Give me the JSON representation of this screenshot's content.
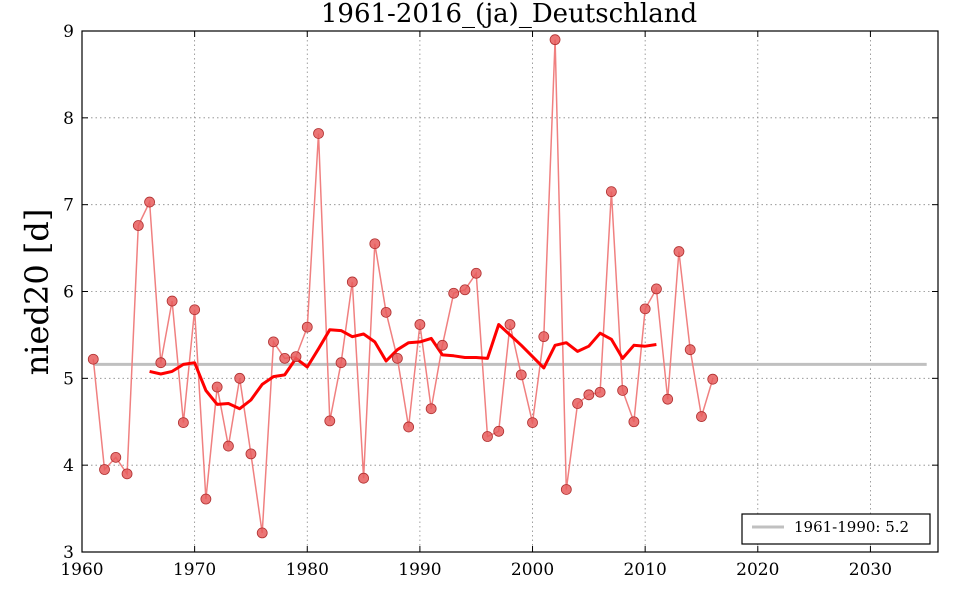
{
  "chart_data": {
    "type": "line",
    "title": "1961-2016_(ja)_Deutschland",
    "xlabel": "",
    "ylabel": "nied20 [d]",
    "xlim": [
      1960,
      2036
    ],
    "ylim": [
      3,
      9
    ],
    "xticks": [
      "1960",
      "1970",
      "1980",
      "1990",
      "2000",
      "2010",
      "2020",
      "2030"
    ],
    "yticks": [
      "3",
      "4",
      "5",
      "6",
      "7",
      "8",
      "9"
    ],
    "grid": true,
    "legend_position": "bottom-right",
    "colors": {
      "annual": "#f08080",
      "marker_fill": "#e85d5d",
      "moving_average": "#ff0000",
      "reference": "#c0c0c0"
    },
    "series": [
      {
        "x": [
          1961,
          1962,
          1963,
          1964,
          1965,
          1966,
          1967,
          1968,
          1969,
          1970,
          1971,
          1972,
          1973,
          1974,
          1975,
          1976,
          1977,
          1978,
          1979,
          1980,
          1981,
          1982,
          1983,
          1984,
          1985,
          1986,
          1987,
          1988,
          1989,
          1990,
          1991,
          1992,
          1993,
          1994,
          1995,
          1996,
          1997,
          1998,
          1999,
          2000,
          2001,
          2002,
          2003,
          2004,
          2005,
          2006,
          2007,
          2008,
          2009,
          2010,
          2011,
          2012,
          2013,
          2014,
          2015,
          2016
        ],
        "values": [
          5.22,
          3.95,
          4.09,
          3.9,
          6.76,
          7.03,
          5.18,
          5.89,
          4.49,
          5.79,
          3.61,
          4.9,
          4.22,
          5.0,
          4.13,
          3.22,
          5.42,
          5.23,
          5.25,
          5.59,
          7.82,
          4.51,
          5.18,
          6.11,
          3.85,
          6.55,
          5.76,
          5.23,
          4.44,
          5.62,
          4.65,
          5.38,
          5.98,
          6.02,
          6.21,
          4.33,
          4.39,
          5.62,
          5.04,
          4.49,
          5.48,
          8.9,
          3.72,
          4.71,
          4.81,
          4.84,
          7.15,
          4.86,
          4.5,
          5.8,
          6.03,
          4.76,
          6.46,
          5.33,
          4.56,
          4.99
        ]
      },
      {
        "x": [
          1966,
          1967,
          1968,
          1969,
          1970,
          1971,
          1972,
          1973,
          1974,
          1975,
          1976,
          1977,
          1978,
          1979,
          1980,
          1981,
          1982,
          1983,
          1984,
          1985,
          1986,
          1987,
          1988,
          1989,
          1990,
          1991,
          1992,
          1993,
          1994,
          1995,
          1996,
          1997,
          1998,
          1999,
          2000,
          2001,
          2002,
          2003,
          2004,
          2005,
          2006,
          2007,
          2008,
          2009,
          2010,
          2011
        ],
        "values": [
          5.08,
          5.05,
          5.08,
          5.16,
          5.18,
          4.86,
          4.7,
          4.71,
          4.65,
          4.75,
          4.93,
          5.02,
          5.04,
          5.23,
          5.13,
          5.34,
          5.56,
          5.55,
          5.48,
          5.51,
          5.42,
          5.2,
          5.33,
          5.41,
          5.42,
          5.46,
          5.27,
          5.26,
          5.24,
          5.24,
          5.23,
          5.62,
          5.5,
          5.38,
          5.25,
          5.12,
          5.38,
          5.41,
          5.31,
          5.37,
          5.52,
          5.45,
          5.23,
          5.38,
          5.37,
          5.39
        ]
      },
      {
        "name": "1961-1990: 5.2",
        "x": [
          1961,
          2035
        ],
        "values": [
          5.16,
          5.16
        ]
      }
    ]
  }
}
